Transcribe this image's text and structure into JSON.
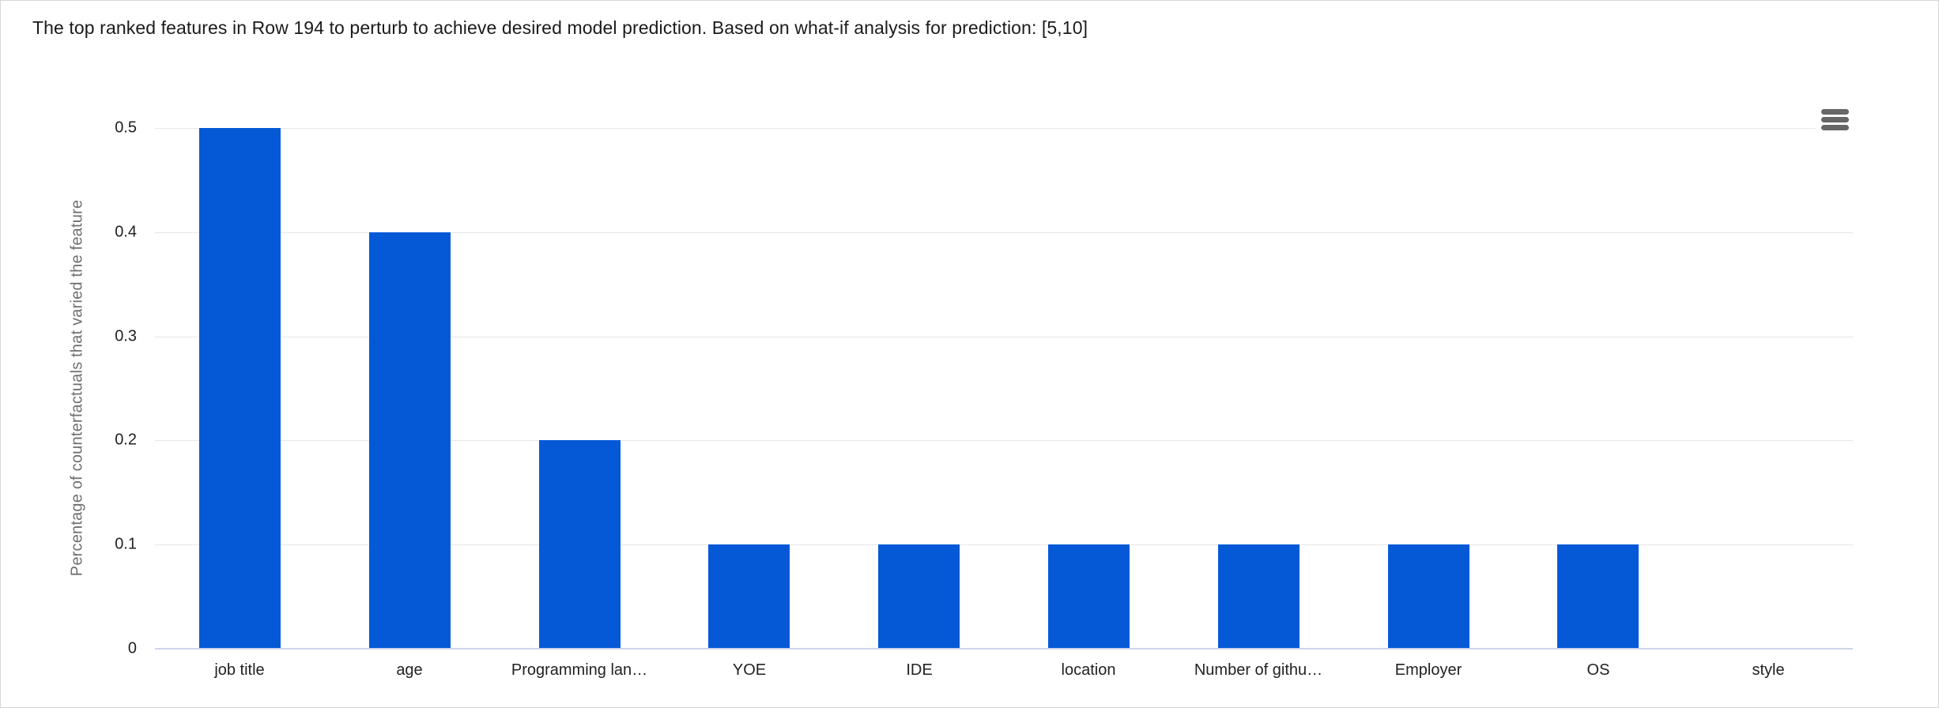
{
  "header": {
    "title": "The top ranked features in Row 194 to perturb to achieve desired model prediction. Based on what-if analysis for prediction: [5,10]"
  },
  "toolbar": {
    "context_menu_icon": "hamburger-menu-icon"
  },
  "colors": {
    "bar": "#0659d6",
    "gridline": "#e6e6e6",
    "axis_line": "#ccd6eb",
    "axis_title_text": "#6f6f6f",
    "tick_label_text": "#222222",
    "title_text": "#1b1b1b",
    "menu_icon": "#666666",
    "background": "#ffffff"
  },
  "chart_data": {
    "type": "bar",
    "title": "",
    "categories": [
      "job title",
      "age",
      "Programming lan…",
      "YOE",
      "IDE",
      "location",
      "Number of githu…",
      "Employer",
      "OS",
      "style"
    ],
    "values": [
      0.5,
      0.4,
      0.2,
      0.1,
      0.1,
      0.1,
      0.1,
      0.1,
      0.1,
      0
    ],
    "xlabel": "",
    "ylabel": "Percentage of counterfactuals that varied the feature",
    "ylim": [
      0,
      0.5
    ],
    "yticks": [
      0,
      0.1,
      0.2,
      0.3,
      0.4,
      0.5
    ],
    "ytick_labels": [
      "0",
      "0.1",
      "0.2",
      "0.3",
      "0.4",
      "0.5"
    ],
    "grid": true,
    "legend": "none",
    "bar_color": "#0659d6"
  }
}
